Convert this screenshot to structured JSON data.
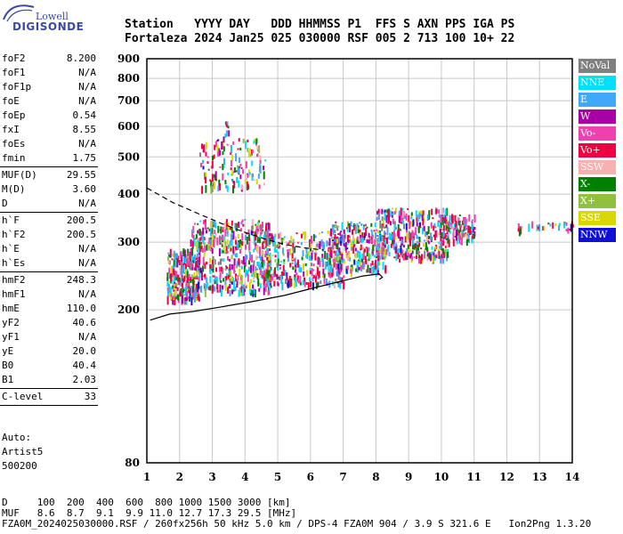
{
  "logo": {
    "top": "Lowell",
    "main": "DIGISONDE"
  },
  "header": {
    "labels": [
      "Station",
      "YYYY",
      "DAY",
      "DDD",
      "HHMMSS",
      "P1",
      "FFS",
      "S",
      "AXN",
      "PPS",
      "IGA",
      "PS"
    ],
    "values": [
      "Fortaleza",
      "2024",
      "Jan25",
      "025",
      "030000",
      "RSF",
      "005",
      "2",
      "713",
      "100",
      "10+",
      "22"
    ]
  },
  "params": [
    {
      "label": "foF2",
      "value": "8.200"
    },
    {
      "label": "foF1",
      "value": "N/A"
    },
    {
      "label": "foF1p",
      "value": "N/A"
    },
    {
      "label": "foE",
      "value": "N/A"
    },
    {
      "label": "foEp",
      "value": "0.54"
    },
    {
      "label": "fxI",
      "value": "8.55"
    },
    {
      "label": "foEs",
      "value": "N/A"
    },
    {
      "label": "fmin",
      "value": "1.75",
      "sep_after": true
    },
    {
      "label": "MUF(D)",
      "value": "29.55"
    },
    {
      "label": "M(D)",
      "value": "3.60"
    },
    {
      "label": "D",
      "value": "N/A",
      "sep_after": true
    },
    {
      "label": "h`F",
      "value": "200.5"
    },
    {
      "label": "h`F2",
      "value": "200.5"
    },
    {
      "label": "h`E",
      "value": "N/A"
    },
    {
      "label": "h`Es",
      "value": "N/A",
      "sep_after": true
    },
    {
      "label": "hmF2",
      "value": "248.3"
    },
    {
      "label": "hmF1",
      "value": "N/A"
    },
    {
      "label": "hmE",
      "value": "110.0"
    },
    {
      "label": "yF2",
      "value": "40.6"
    },
    {
      "label": "yF1",
      "value": "N/A"
    },
    {
      "label": "yE",
      "value": "20.0"
    },
    {
      "label": "B0",
      "value": "40.4"
    },
    {
      "label": "B1",
      "value": "2.03",
      "sep_after": true
    },
    {
      "label": "C-level",
      "value": "33",
      "sep_after": true
    }
  ],
  "auto": {
    "line1": "Auto:",
    "line2": "Artist5",
    "line3": "500200"
  },
  "legend": [
    {
      "label": "NoVal",
      "color": "#808080"
    },
    {
      "label": "NNE",
      "color": "#00e0f8"
    },
    {
      "label": "E",
      "color": "#40a8f8"
    },
    {
      "label": "W",
      "color": "#a800a8"
    },
    {
      "label": "Vo-",
      "color": "#f040b0"
    },
    {
      "label": "Vo+",
      "color": "#f00040"
    },
    {
      "label": "SSW",
      "color": "#f8b0b0"
    },
    {
      "label": "X-",
      "color": "#008000"
    },
    {
      "label": "X+",
      "color": "#90c040"
    },
    {
      "label": "SSE",
      "color": "#d8d800"
    },
    {
      "label": "NNW",
      "color": "#1010d0"
    }
  ],
  "footer": {
    "line1": "D     100  200  400  600  800 1000 1500 3000 [km]",
    "line2": "MUF   8.6  8.7  9.1  9.9 11.0 12.7 17.3 29.5 [MHz]",
    "line3": "FZA0M_2024025030000.RSF / 260fx256h 50 kHz 5.0 km / DPS-4 FZA0M 904 / 3.9 S 321.6 E   Ion2Png 1.3.20"
  },
  "chart_data": {
    "type": "scatter",
    "xlabel": "",
    "ylabel": "",
    "xlim": [
      1,
      14
    ],
    "ylim": [
      80,
      900
    ],
    "x_ticks": [
      1,
      2,
      3,
      4,
      5,
      6,
      7,
      8,
      9,
      10,
      11,
      12,
      13,
      14
    ],
    "y_ticks": [
      80,
      200,
      300,
      400,
      500,
      600,
      700,
      800,
      900
    ],
    "y_scale": "log",
    "grid": true,
    "legend_position": "right",
    "trace_clusters": [
      {
        "x": [
          1.6,
          2.6
        ],
        "y": [
          215,
          290
        ],
        "n": 260
      },
      {
        "x": [
          2.3,
          4.8
        ],
        "y": [
          225,
          345
        ],
        "n": 520
      },
      {
        "x": [
          4.5,
          7.0
        ],
        "y": [
          235,
          320
        ],
        "n": 320
      },
      {
        "x": [
          6.5,
          8.3
        ],
        "y": [
          255,
          340
        ],
        "n": 300
      },
      {
        "x": [
          8.0,
          10.2
        ],
        "y": [
          275,
          370
        ],
        "n": 360
      },
      {
        "x": [
          10.0,
          11.0
        ],
        "y": [
          305,
          355
        ],
        "n": 130
      },
      {
        "x": [
          2.6,
          4.6
        ],
        "y": [
          420,
          560
        ],
        "n": 140
      },
      {
        "x": [
          3.3,
          3.5
        ],
        "y": [
          560,
          620
        ],
        "n": 8
      },
      {
        "x": [
          12.3,
          14.0
        ],
        "y": [
          325,
          340
        ],
        "n": 30
      }
    ],
    "profile_upper": {
      "x": [
        1.0,
        1.8,
        2.6,
        3.3,
        4.0,
        4.6,
        5.2,
        5.8,
        6.4
      ],
      "y": [
        415,
        380,
        355,
        335,
        318,
        306,
        296,
        290,
        286
      ]
    },
    "profile_lower": {
      "x": [
        1.1,
        1.7,
        2.4,
        3.2,
        4.2,
        5.2,
        6.1,
        6.9,
        7.6,
        8.1,
        8.2,
        8.1
      ],
      "y": [
        188,
        195,
        198,
        203,
        210,
        218,
        228,
        237,
        245,
        248,
        243,
        240
      ]
    }
  }
}
